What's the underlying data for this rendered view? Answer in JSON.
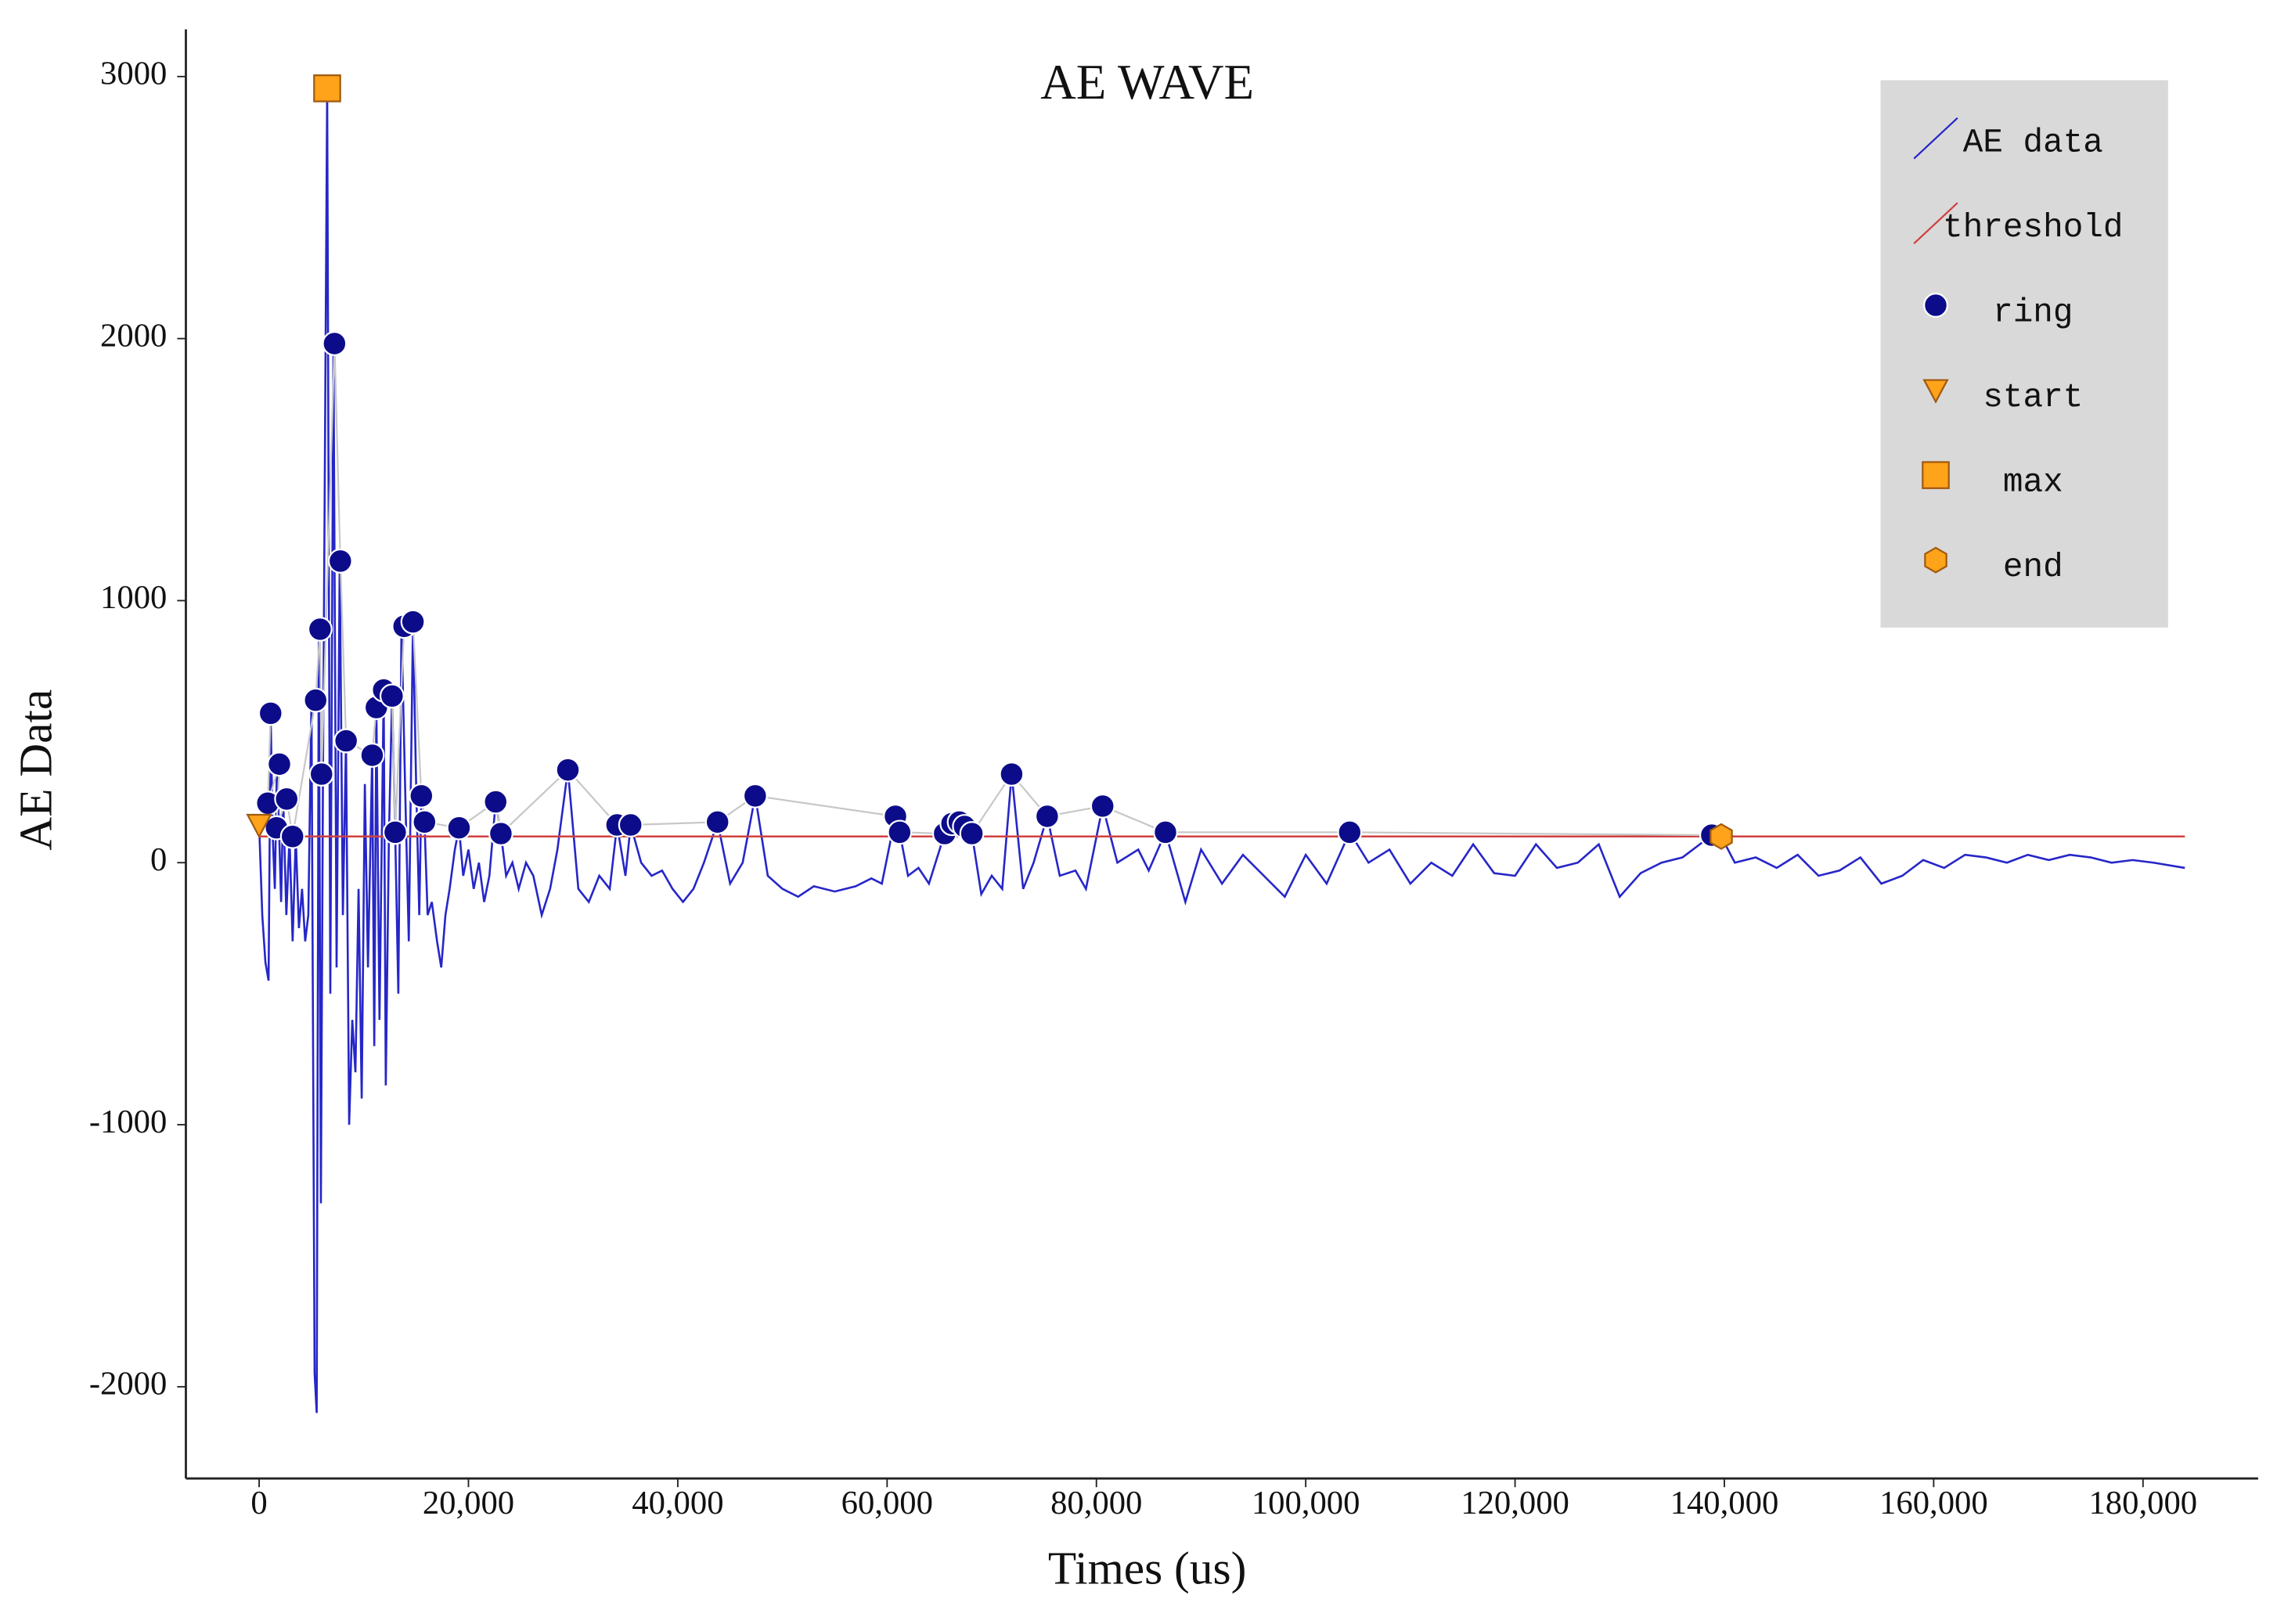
{
  "chart_data": {
    "type": "line",
    "title": "AE WAVE",
    "x_label": "Times (us)",
    "y_label": "AE Data",
    "xlim": [
      -7000,
      191000
    ],
    "ylim": [
      -2350,
      3180
    ],
    "xticks": [
      0,
      {
        "value": 20000,
        "label": "20,000"
      },
      {
        "value": 40000,
        "label": "40,000"
      },
      {
        "value": 60000,
        "label": "60,000"
      },
      {
        "value": 80000,
        "label": "80,000"
      },
      {
        "value": 100000,
        "label": "100,000"
      },
      {
        "value": 120000,
        "label": "120,000"
      },
      {
        "value": 140000,
        "label": "140,000"
      },
      {
        "value": 160000,
        "label": "160,000"
      },
      {
        "value": 180000,
        "label": "180,000"
      }
    ],
    "yticks": [
      3000,
      2000,
      1000,
      0,
      -1000,
      -2000
    ],
    "grid": false,
    "legend": "upper right",
    "series": [
      {
        "name": "AE data",
        "color": "#2626c8",
        "marker": "none",
        "x": [
          0,
          300,
          600,
          900,
          1100,
          1300,
          1500,
          1700,
          1900,
          2100,
          2300,
          2600,
          2900,
          3200,
          3500,
          3800,
          4100,
          4400,
          4700,
          5000,
          5300,
          5500,
          5700,
          5900,
          6100,
          6500,
          6800,
          7100,
          7400,
          7700,
          8000,
          8300,
          8600,
          8900,
          9200,
          9500,
          9800,
          10100,
          10400,
          10800,
          11000,
          11200,
          11500,
          11900,
          12100,
          12400,
          12700,
          13000,
          13300,
          13600,
          14000,
          14300,
          14700,
          15000,
          15300,
          15500,
          15800,
          16100,
          16500,
          17000,
          17400,
          17800,
          18200,
          18700,
          19100,
          19500,
          20000,
          20500,
          21000,
          21500,
          22000,
          22600,
          23100,
          23600,
          24200,
          24800,
          25500,
          26200,
          27000,
          27800,
          28500,
          29500,
          30500,
          31500,
          32500,
          33500,
          34200,
          35000,
          35500,
          36500,
          37500,
          38500,
          39500,
          40500,
          41500,
          42500,
          43800,
          45000,
          46200,
          47400,
          48600,
          50000,
          51500,
          53000,
          55000,
          57000,
          58500,
          59500,
          60800,
          61200,
          62000,
          63000,
          64000,
          65500,
          66200,
          66900,
          67400,
          68100,
          69000,
          70000,
          71000,
          71900,
          73000,
          74000,
          75300,
          76500,
          78000,
          79000,
          80600,
          82000,
          84000,
          85000,
          86600,
          88500,
          90000,
          92000,
          94000,
          96000,
          98000,
          100000,
          102000,
          104200,
          106000,
          108000,
          110000,
          112000,
          114000,
          116000,
          118000,
          120000,
          122000,
          124000,
          126000,
          128000,
          130000,
          132000,
          134000,
          136000,
          138800,
          139700,
          141000,
          143000,
          145000,
          147000,
          149000,
          151000,
          153000,
          155000,
          157000,
          159000,
          161000,
          163000,
          165000,
          167000,
          169000,
          171000,
          173000,
          175000,
          177000,
          179000,
          181000,
          184000
        ],
        "values": [
          144,
          -200,
          -380,
          -450,
          570,
          100,
          -100,
          376,
          133,
          -150,
          243,
          -200,
          100,
          -300,
          100,
          -250,
          -100,
          -300,
          -200,
          620,
          -1950,
          -2100,
          891,
          -1300,
          338,
          2955,
          -500,
          1981,
          -400,
          1151,
          -200,
          465,
          -1000,
          -600,
          -800,
          -100,
          -900,
          300,
          -400,
          410,
          -700,
          592,
          -600,
          659,
          -850,
          100,
          636,
          116,
          -500,
          902,
          200,
          -300,
          919,
          300,
          -200,
          255,
          155,
          -200,
          -150,
          -300,
          -400,
          -200,
          -100,
          50,
          133,
          -50,
          50,
          -100,
          0,
          -150,
          -50,
          232,
          111,
          -50,
          0,
          -100,
          0,
          -50,
          -200,
          -100,
          50,
          354,
          -100,
          -150,
          -50,
          -100,
          144,
          -50,
          144,
          0,
          -50,
          -30,
          -100,
          -150,
          -100,
          0,
          155,
          -80,
          0,
          255,
          -50,
          -100,
          -130,
          -90,
          -110,
          -90,
          -60,
          -80,
          177,
          116,
          -50,
          -20,
          -80,
          111,
          149,
          155,
          138,
          111,
          -120,
          -50,
          -100,
          338,
          -100,
          0,
          177,
          -50,
          -30,
          -100,
          216,
          0,
          50,
          -30,
          116,
          -150,
          50,
          -80,
          30,
          -50,
          -130,
          30,
          -80,
          116,
          0,
          50,
          -80,
          0,
          -50,
          70,
          -40,
          -50,
          70,
          -20,
          0,
          70,
          -130,
          -40,
          0,
          20,
          105,
          100,
          0,
          20,
          -20,
          30,
          -50,
          -30,
          20,
          -80,
          -50,
          10,
          -20,
          30,
          20,
          0,
          30,
          10,
          30,
          20,
          0,
          10,
          0,
          -20
        ]
      },
      {
        "name": "threshold",
        "color": "#d04040",
        "marker": "none",
        "x": [
          0,
          184000
        ],
        "values": [
          100,
          100
        ]
      },
      {
        "name": "ring",
        "color": "#0c0c8a",
        "marker": "circle",
        "connect": "#c8c8c8",
        "x": [
          1100,
          830,
          1940,
          1660,
          2630,
          3190,
          5400,
          5820,
          5960,
          7200,
          7760,
          8310,
          10800,
          11200,
          11900,
          12700,
          13000,
          13850,
          14700,
          15500,
          15800,
          19100,
          22600,
          23100,
          29500,
          34200,
          35500,
          43800,
          47400,
          60800,
          61200,
          65500,
          66200,
          66900,
          67400,
          68100,
          71900,
          75300,
          80600,
          86600,
          104200,
          138800
        ],
        "values": [
          570,
          227,
          376,
          133,
          243,
          100,
          620,
          891,
          338,
          1981,
          1151,
          465,
          410,
          592,
          659,
          636,
          116,
          902,
          919,
          255,
          155,
          133,
          232,
          111,
          354,
          144,
          144,
          155,
          255,
          177,
          116,
          111,
          149,
          155,
          138,
          111,
          338,
          177,
          216,
          116,
          116,
          105
        ]
      },
      {
        "name": "start",
        "color": "#ffa31a",
        "marker": "triangle",
        "x": [
          0
        ],
        "values": [
          144
        ]
      },
      {
        "name": "max",
        "color": "#ffa31a",
        "marker": "square",
        "x": [
          6500
        ],
        "values": [
          2955
        ]
      },
      {
        "name": "end",
        "color": "#ffa31a",
        "marker": "hexagon",
        "x": [
          139700
        ],
        "values": [
          100
        ]
      }
    ]
  }
}
